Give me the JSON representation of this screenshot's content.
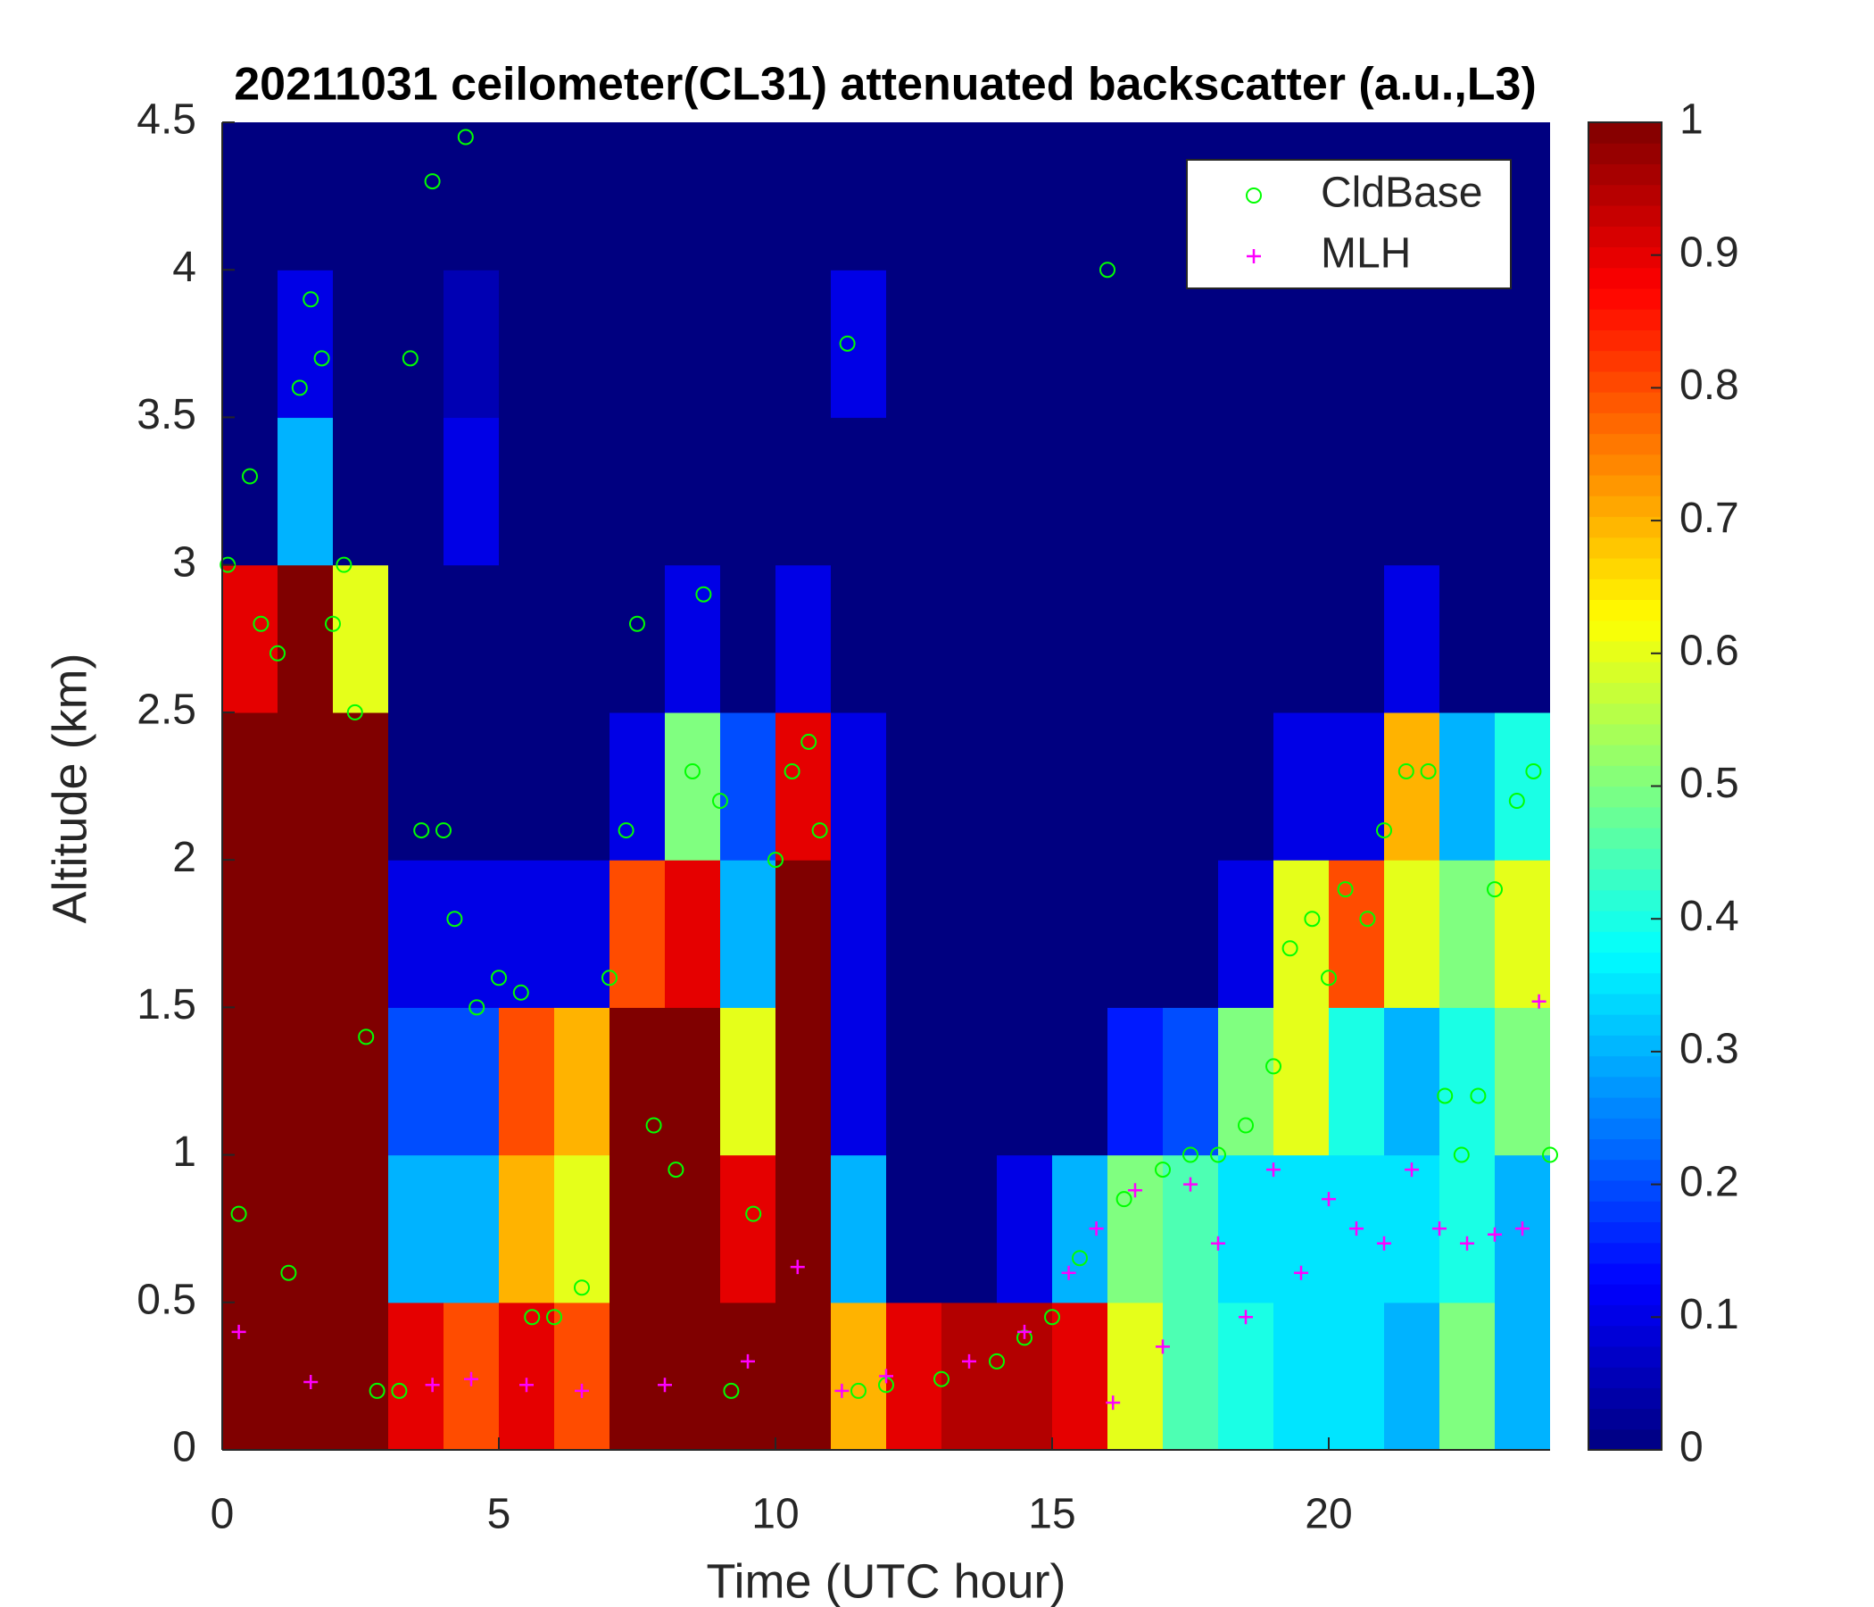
{
  "chart_data": {
    "type": "heatmap",
    "title": "20211031 ceilometer(CL31) attenuated backscatter (a.u.,L3)",
    "xlabel": "Time (UTC hour)",
    "ylabel": "Altitude (km)",
    "xlim": [
      0,
      24
    ],
    "ylim": [
      0,
      4.5
    ],
    "xticks": [
      0,
      5,
      10,
      15,
      20
    ],
    "yticks": [
      0,
      0.5,
      1,
      1.5,
      2,
      2.5,
      3,
      3.5,
      4,
      4.5
    ],
    "colormap": "jet",
    "clim": [
      0,
      1
    ],
    "cticks": [
      0,
      0.1,
      0.2,
      0.3,
      0.4,
      0.5,
      0.6,
      0.7,
      0.8,
      0.9,
      1
    ],
    "x": [
      0.5,
      1.5,
      2.5,
      3.5,
      4.5,
      5.5,
      6.5,
      7.5,
      8.5,
      9.5,
      10.5,
      11.5,
      12.5,
      13.5,
      14.5,
      15.5,
      16.5,
      17.5,
      18.5,
      19.5,
      20.5,
      21.5,
      22.5,
      23.5
    ],
    "y": [
      0.25,
      0.75,
      1.25,
      1.75,
      2.25,
      2.75,
      3.25,
      3.75,
      4.25
    ],
    "z": [
      [
        1,
        1,
        1,
        1,
        1,
        0.9,
        0,
        0,
        0
      ],
      [
        1,
        1,
        1,
        1,
        1,
        1,
        0.3,
        0.1,
        0
      ],
      [
        1,
        1,
        1,
        1,
        1,
        0.6,
        0,
        0,
        0
      ],
      [
        0.9,
        0.3,
        0.2,
        0.1,
        0,
        0,
        0,
        0,
        0
      ],
      [
        0.8,
        0.3,
        0.2,
        0.1,
        0,
        0,
        0.1,
        0.05,
        0
      ],
      [
        0.9,
        0.7,
        0.8,
        0.1,
        0,
        0,
        0,
        0,
        0
      ],
      [
        0.8,
        0.6,
        0.7,
        0.1,
        0,
        0,
        0,
        0,
        0
      ],
      [
        1,
        1,
        1,
        0.8,
        0.1,
        0,
        0,
        0,
        0
      ],
      [
        1,
        1,
        1,
        0.9,
        0.5,
        0.1,
        0,
        0,
        0
      ],
      [
        1,
        0.9,
        0.6,
        0.3,
        0.2,
        0,
        0,
        0,
        0
      ],
      [
        1,
        1,
        1,
        1,
        0.9,
        0.1,
        0,
        0,
        0
      ],
      [
        0.7,
        0.3,
        0.1,
        0.1,
        0.1,
        0,
        0,
        0.1,
        0
      ],
      [
        0.9,
        0,
        0,
        0,
        0,
        0,
        0,
        0,
        0
      ],
      [
        0.95,
        0,
        0,
        0,
        0,
        0,
        0,
        0,
        0
      ],
      [
        0.95,
        0.1,
        0,
        0,
        0,
        0,
        0,
        0,
        0
      ],
      [
        0.9,
        0.3,
        0,
        0,
        0,
        0,
        0,
        0,
        0
      ],
      [
        0.6,
        0.5,
        0.15,
        0,
        0,
        0,
        0,
        0,
        0
      ],
      [
        0.45,
        0.45,
        0.2,
        0,
        0,
        0,
        0,
        0,
        0
      ],
      [
        0.4,
        0.35,
        0.5,
        0.1,
        0,
        0,
        0,
        0,
        0
      ],
      [
        0.35,
        0.35,
        0.6,
        0.6,
        0.1,
        0,
        0,
        0,
        0
      ],
      [
        0.35,
        0.35,
        0.4,
        0.8,
        0.1,
        0,
        0,
        0,
        0
      ],
      [
        0.3,
        0.35,
        0.3,
        0.6,
        0.7,
        0.1,
        0,
        0,
        0
      ],
      [
        0.5,
        0.4,
        0.4,
        0.5,
        0.3,
        0,
        0,
        0,
        0
      ],
      [
        0.3,
        0.3,
        0.5,
        0.6,
        0.4,
        0,
        0,
        0,
        0
      ]
    ],
    "legend": "upper right",
    "series": [
      {
        "name": "CldBase",
        "marker": "o",
        "color": "#00ff00",
        "x": [
          0.1,
          0.3,
          0.5,
          0.7,
          1.0,
          1.2,
          1.4,
          1.6,
          1.8,
          2.0,
          2.2,
          2.4,
          2.6,
          2.8,
          3.2,
          3.4,
          3.6,
          3.8,
          4.0,
          4.2,
          4.4,
          4.6,
          5.0,
          5.4,
          5.6,
          6.0,
          6.5,
          7.0,
          7.3,
          7.5,
          7.8,
          8.2,
          8.5,
          8.7,
          9.0,
          9.2,
          9.6,
          10.0,
          10.3,
          10.6,
          10.8,
          11.3,
          11.5,
          12,
          13,
          14,
          14.5,
          15,
          15.5,
          16,
          16.3,
          17,
          17.5,
          18,
          18.5,
          19,
          19.3,
          19.7,
          20,
          20.3,
          20.7,
          21,
          21.4,
          21.8,
          22.1,
          22.4,
          22.7,
          23,
          23.4,
          23.7,
          24
        ],
        "y": [
          3.0,
          0.8,
          3.3,
          2.8,
          2.7,
          0.6,
          3.6,
          3.9,
          3.7,
          2.8,
          3.0,
          2.5,
          1.4,
          0.2,
          0.2,
          3.7,
          2.1,
          4.3,
          2.1,
          1.8,
          4.45,
          1.5,
          1.6,
          1.55,
          0.45,
          0.45,
          0.55,
          1.6,
          2.1,
          2.8,
          1.1,
          0.95,
          2.3,
          2.9,
          2.2,
          0.2,
          0.8,
          2.0,
          2.3,
          2.4,
          2.1,
          3.75,
          0.2,
          0.22,
          0.24,
          0.3,
          0.38,
          0.45,
          0.65,
          4.0,
          0.85,
          0.95,
          1.0,
          1.0,
          1.1,
          1.3,
          1.7,
          1.8,
          1.6,
          1.9,
          1.8,
          2.1,
          2.3,
          2.3,
          1.2,
          1.0,
          1.2,
          1.9,
          2.2,
          2.3,
          1.0
        ]
      },
      {
        "name": "MLH",
        "marker": "+",
        "color": "#ff00ff",
        "x": [
          0.3,
          1.6,
          3.8,
          4.5,
          5.5,
          6.5,
          8,
          9.5,
          10.4,
          11.2,
          12,
          13.5,
          14.5,
          15.3,
          15.8,
          16.1,
          16.5,
          17,
          17.5,
          18,
          18.5,
          19,
          19.5,
          20,
          20.5,
          21,
          21.5,
          22,
          22.5,
          23,
          23.5,
          23.8
        ],
        "y": [
          0.4,
          0.23,
          0.22,
          0.24,
          0.22,
          0.2,
          0.22,
          0.3,
          0.62,
          0.2,
          0.25,
          0.3,
          0.4,
          0.6,
          0.75,
          0.16,
          0.88,
          0.35,
          0.9,
          0.7,
          0.45,
          0.95,
          0.6,
          0.85,
          0.75,
          0.7,
          0.95,
          0.75,
          0.7,
          0.73,
          0.75,
          1.52
        ]
      }
    ]
  }
}
